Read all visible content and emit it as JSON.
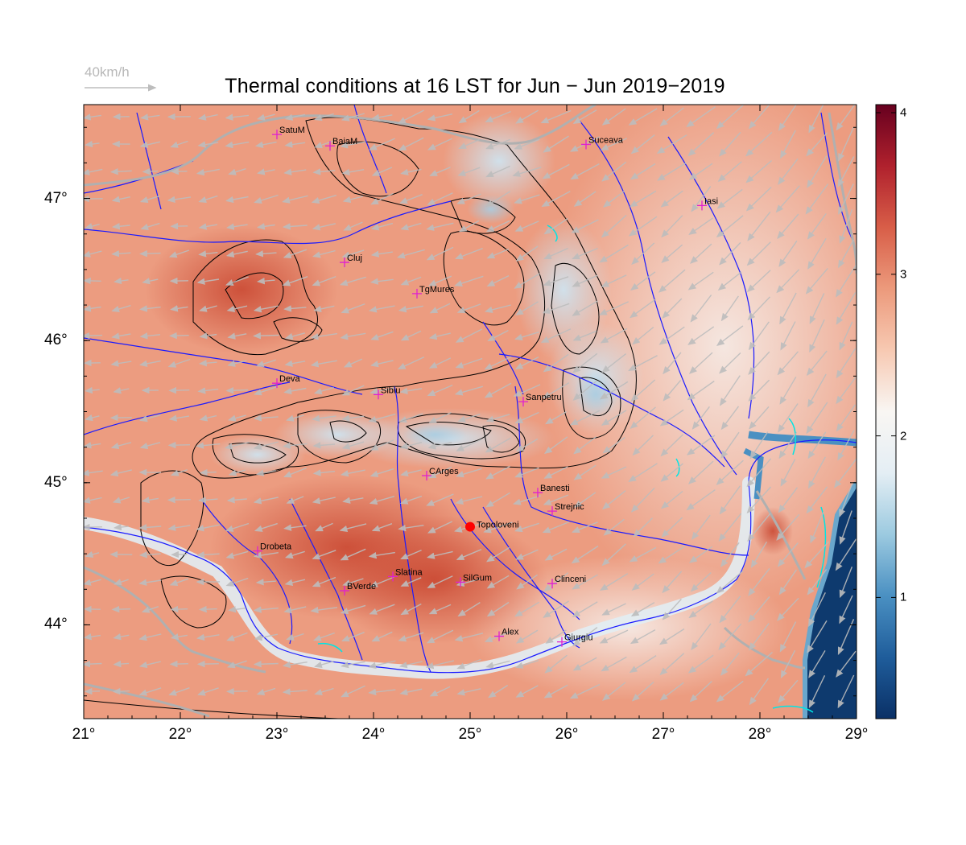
{
  "title": "Thermal conditions at 16 LST for Jun − Jun  2019−2019",
  "wind_scale": {
    "label": "40km/h",
    "color": "#b8b8b8"
  },
  "map": {
    "lon_range": [
      21,
      29
    ],
    "lat_range": [
      43.34,
      47.66
    ],
    "lon_ticks": [
      {
        "value": 21,
        "label": "21°"
      },
      {
        "value": 22,
        "label": "22°"
      },
      {
        "value": 23,
        "label": "23°"
      },
      {
        "value": 24,
        "label": "24°"
      },
      {
        "value": 25,
        "label": "25°"
      },
      {
        "value": 26,
        "label": "26°"
      },
      {
        "value": 27,
        "label": "27°"
      },
      {
        "value": 28,
        "label": "28°"
      },
      {
        "value": 29,
        "label": "29°"
      }
    ],
    "lat_ticks": [
      {
        "value": 44,
        "label": "44°"
      },
      {
        "value": 45,
        "label": "45°"
      },
      {
        "value": 46,
        "label": "46°"
      },
      {
        "value": 47,
        "label": "47°"
      }
    ],
    "colors": {
      "river": "#1a1aff",
      "contour": "#000000",
      "border": "#b0b0b0",
      "station": "#e020d0",
      "highlight": "#ff0000",
      "lake": "#00e5e5",
      "cool": "#cfe3ef",
      "warm": "#e8866a",
      "hot": "#c8442e",
      "sea": "#0e3a6e"
    }
  },
  "colorbar": {
    "min": 0.25,
    "max": 4.05,
    "ticks": [
      {
        "value": 1,
        "label": "1"
      },
      {
        "value": 2,
        "label": "2"
      },
      {
        "value": 3,
        "label": "3"
      },
      {
        "value": 4,
        "label": "4"
      }
    ],
    "stops": [
      "#0a3066",
      "#1f5d9b",
      "#4a90c2",
      "#9ccae0",
      "#e4eef4",
      "#f9f6f3",
      "#f7c9b2",
      "#ec9a7c",
      "#d85e48",
      "#b0212d",
      "#67001f"
    ]
  },
  "stations": [
    {
      "name": "SatuM",
      "lon": 23.0,
      "lat": 47.45
    },
    {
      "name": "BaiaM",
      "lon": 23.55,
      "lat": 47.37
    },
    {
      "name": "Suceava",
      "lon": 26.2,
      "lat": 47.38
    },
    {
      "name": "Iasi",
      "lon": 27.4,
      "lat": 46.95
    },
    {
      "name": "Cluj",
      "lon": 23.7,
      "lat": 46.55
    },
    {
      "name": "TgMures",
      "lon": 24.45,
      "lat": 46.33
    },
    {
      "name": "Deva",
      "lon": 23.0,
      "lat": 45.7
    },
    {
      "name": "Sibiu",
      "lon": 24.05,
      "lat": 45.62
    },
    {
      "name": "Sanpetru",
      "lon": 25.55,
      "lat": 45.57
    },
    {
      "name": "CArges",
      "lon": 24.55,
      "lat": 45.05
    },
    {
      "name": "Banesti",
      "lon": 25.7,
      "lat": 44.93
    },
    {
      "name": "Strejnic",
      "lon": 25.85,
      "lat": 44.8
    },
    {
      "name": "Drobeta",
      "lon": 22.8,
      "lat": 44.52
    },
    {
      "name": "Slatina",
      "lon": 24.2,
      "lat": 44.34
    },
    {
      "name": "BVerde",
      "lon": 23.7,
      "lat": 44.24
    },
    {
      "name": "SilGum",
      "lon": 24.9,
      "lat": 44.3
    },
    {
      "name": "Clinceni",
      "lon": 25.85,
      "lat": 44.29
    },
    {
      "name": "Alex",
      "lon": 25.3,
      "lat": 43.92
    },
    {
      "name": "Giurgiu",
      "lon": 25.95,
      "lat": 43.88
    }
  ],
  "highlight_station": {
    "name": "Topoloveni",
    "lon": 25.0,
    "lat": 44.69
  }
}
